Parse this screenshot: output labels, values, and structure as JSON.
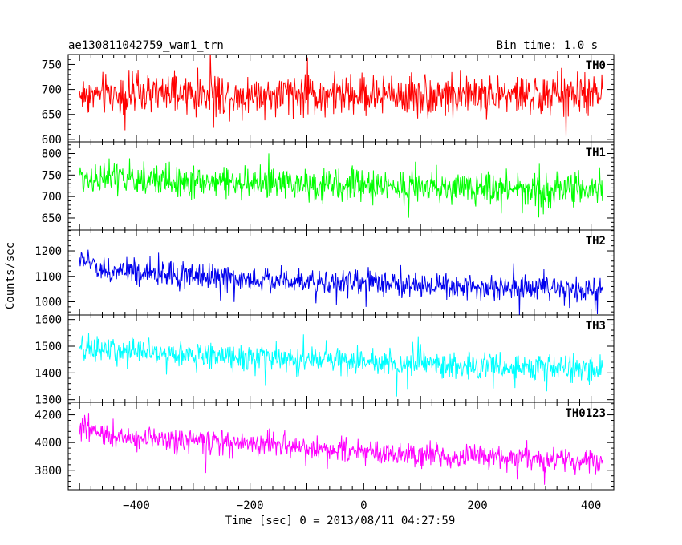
{
  "header": {
    "title": "ae130811042759_wam1_trn",
    "bin_time": "Bin time: 1.0 s"
  },
  "axes": {
    "ylabel": "Counts/sec",
    "xlabel": "Time [sec] 0 = 2013/08/11 04:27:59",
    "xlim": [
      -520,
      440
    ],
    "xticks_major": [
      -400,
      -200,
      0,
      200,
      400
    ],
    "xtick_labels": [
      "−400",
      "−200",
      "0",
      "200",
      "400"
    ]
  },
  "chart_data": [
    {
      "type": "line",
      "name": "TH0",
      "color": "#ff0000",
      "ylim": [
        595,
        770
      ],
      "yticks": [
        600,
        650,
        700,
        750
      ],
      "x_range": [
        -500,
        420
      ],
      "trend": [
        [
          -500,
          690
        ],
        [
          420,
          688
        ]
      ],
      "noise_amplitude": 35,
      "spike_amplitude": 70
    },
    {
      "type": "line",
      "name": "TH1",
      "color": "#00ff00",
      "ylim": [
        622,
        827
      ],
      "yticks": [
        650,
        700,
        750,
        800
      ],
      "x_range": [
        -500,
        420
      ],
      "trend": [
        [
          -500,
          745
        ],
        [
          -200,
          730
        ],
        [
          420,
          715
        ]
      ],
      "noise_amplitude": 32,
      "spike_amplitude": 75
    },
    {
      "type": "line",
      "name": "TH2",
      "color": "#0000ee",
      "ylim": [
        948,
        1282
      ],
      "yticks": [
        1000,
        1100,
        1200
      ],
      "x_range": [
        -500,
        420
      ],
      "trend": [
        [
          -500,
          1170
        ],
        [
          -450,
          1120
        ],
        [
          -200,
          1090
        ],
        [
          0,
          1075
        ],
        [
          420,
          1040
        ]
      ],
      "noise_amplitude": 42,
      "spike_amplitude": 90
    },
    {
      "type": "line",
      "name": "TH3",
      "color": "#00ffff",
      "ylim": [
        1290,
        1617
      ],
      "yticks": [
        1300,
        1400,
        1500,
        1600
      ],
      "x_range": [
        -500,
        420
      ],
      "trend": [
        [
          -500,
          1490
        ],
        [
          -200,
          1455
        ],
        [
          0,
          1440
        ],
        [
          420,
          1410
        ]
      ],
      "noise_amplitude": 42,
      "spike_amplitude": 100
    },
    {
      "type": "line",
      "name": "TH0123",
      "color": "#ff00ff",
      "ylim": [
        3660,
        4290
      ],
      "yticks": [
        3800,
        4000,
        4200
      ],
      "x_range": [
        -500,
        420
      ],
      "trend": [
        [
          -500,
          4110
        ],
        [
          -450,
          4050
        ],
        [
          -200,
          3990
        ],
        [
          0,
          3930
        ],
        [
          420,
          3860
        ]
      ],
      "noise_amplitude": 75,
      "spike_amplitude": 180
    }
  ]
}
